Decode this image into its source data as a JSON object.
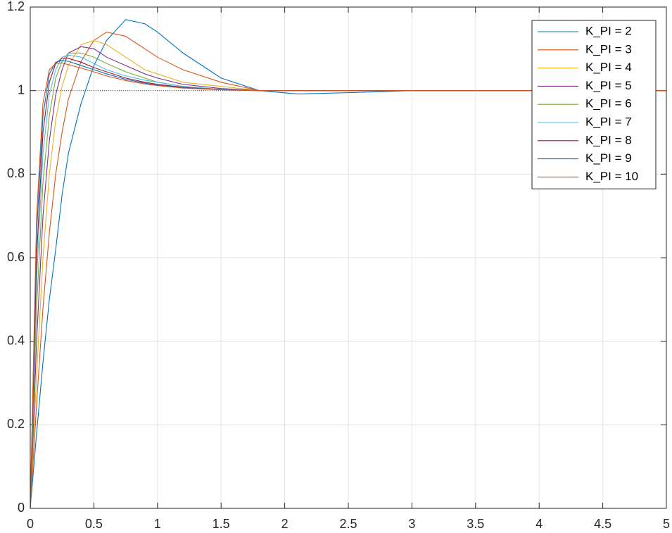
{
  "chart_data": {
    "type": "line",
    "x": [
      0,
      0.05,
      0.1,
      0.15,
      0.2,
      0.25,
      0.3,
      0.4,
      0.5,
      0.6,
      0.75,
      0.9,
      1.0,
      1.2,
      1.5,
      1.8,
      2.1,
      2.5,
      3,
      4,
      5
    ],
    "series": [
      {
        "name": "K_PI = 2",
        "color": "#0072BD",
        "values": [
          0,
          0.18,
          0.35,
          0.5,
          0.62,
          0.75,
          0.85,
          0.97,
          1.06,
          1.12,
          1.17,
          1.16,
          1.14,
          1.09,
          1.03,
          1.0,
          0.992,
          0.995,
          1.0,
          1.0,
          1.0
        ]
      },
      {
        "name": "K_PI = 3",
        "color": "#D95319",
        "values": [
          0,
          0.25,
          0.48,
          0.66,
          0.8,
          0.9,
          0.98,
          1.07,
          1.12,
          1.14,
          1.13,
          1.1,
          1.08,
          1.05,
          1.02,
          1.0,
          1.0,
          1.0,
          1.0,
          1.0,
          1.0
        ]
      },
      {
        "name": "K_PI = 4",
        "color": "#EDB120",
        "values": [
          0,
          0.32,
          0.6,
          0.8,
          0.93,
          1.01,
          1.06,
          1.11,
          1.12,
          1.11,
          1.08,
          1.05,
          1.04,
          1.02,
          1.01,
          1.0,
          1.0,
          1.0,
          1.0,
          1.0,
          1.0
        ]
      },
      {
        "name": "K_PI = 5",
        "color": "#7E2F8E",
        "values": [
          0,
          0.4,
          0.7,
          0.88,
          0.99,
          1.05,
          1.09,
          1.105,
          1.1,
          1.08,
          1.06,
          1.04,
          1.03,
          1.015,
          1.005,
          1.0,
          1.0,
          1.0,
          1.0,
          1.0,
          1.0
        ]
      },
      {
        "name": "K_PI = 6",
        "color": "#77AC30",
        "values": [
          0,
          0.48,
          0.78,
          0.94,
          1.03,
          1.07,
          1.09,
          1.09,
          1.08,
          1.065,
          1.045,
          1.03,
          1.02,
          1.01,
          1.003,
          1.0,
          1.0,
          1.0,
          1.0,
          1.0,
          1.0
        ]
      },
      {
        "name": "K_PI = 7",
        "color": "#4DBEEE",
        "values": [
          0,
          0.55,
          0.85,
          0.99,
          1.05,
          1.08,
          1.085,
          1.08,
          1.065,
          1.05,
          1.035,
          1.025,
          1.02,
          1.01,
          1.003,
          1.0,
          1.0,
          1.0,
          1.0,
          1.0,
          1.0
        ]
      },
      {
        "name": "K_PI = 8",
        "color": "#A2142F",
        "values": [
          0,
          0.6,
          0.9,
          1.02,
          1.065,
          1.078,
          1.077,
          1.068,
          1.055,
          1.045,
          1.03,
          1.02,
          1.015,
          1.008,
          1.002,
          1.0,
          1.0,
          1.0,
          1.0,
          1.0,
          1.0
        ]
      },
      {
        "name": "K_PI = 9",
        "color": "#0072BD",
        "values": [
          0,
          0.66,
          0.94,
          1.04,
          1.068,
          1.072,
          1.07,
          1.06,
          1.05,
          1.04,
          1.027,
          1.018,
          1.013,
          1.007,
          1.002,
          1.0,
          1.0,
          1.0,
          1.0,
          1.0,
          1.0
        ]
      },
      {
        "name": "K_PI = 10",
        "color": "#D95319",
        "values": [
          0,
          0.7,
          0.97,
          1.05,
          1.065,
          1.066,
          1.062,
          1.054,
          1.045,
          1.035,
          1.024,
          1.016,
          1.012,
          1.006,
          1.002,
          1.0,
          1.0,
          1.0,
          1.0,
          1.0,
          1.0
        ]
      }
    ],
    "reference_line": 1,
    "xlim": [
      0,
      5
    ],
    "xticks": [
      0,
      0.5,
      1,
      1.5,
      2,
      2.5,
      3,
      3.5,
      4,
      4.5,
      5
    ],
    "ylim": [
      0,
      1.2
    ],
    "yticks": [
      0,
      0.2,
      0.4,
      0.6,
      0.8,
      1,
      1.2
    ],
    "grid": true,
    "legend": "northeast"
  }
}
